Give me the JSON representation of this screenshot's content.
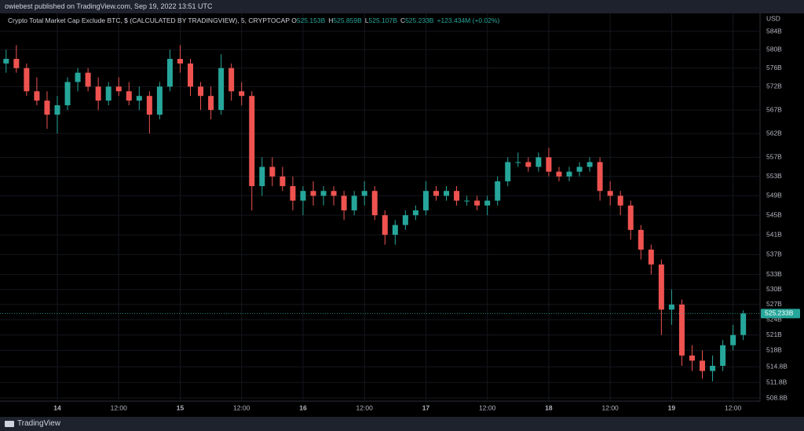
{
  "header": {
    "publisher": "owiebest published on TradingView.com, Sep 19, 2022 13:51 UTC"
  },
  "footer": {
    "brand": "TradingView"
  },
  "chart_data": {
    "type": "candlestick",
    "title": "Crypto Total Market Cap Exclude BTC, $ (CALCULATED BY TRADINGVIEW), 5, CRYPTOCAP",
    "ohlc_legend": [
      {
        "key": "O",
        "value": "525.153B"
      },
      {
        "key": "H",
        "value": "525.859B"
      },
      {
        "key": "L",
        "value": "525.107B"
      },
      {
        "key": "C",
        "value": "525.233B"
      }
    ],
    "change": "+123.434M (+0.02%)",
    "y_unit": "USD",
    "last_price": {
      "value": 525.233,
      "label": "525.233B"
    },
    "up_color": "#26a69a",
    "down_color": "#ef5350",
    "log_scale": true,
    "grid": true,
    "ylim": [
      508.05,
      587.98
    ],
    "yticks": [
      {
        "value": 584,
        "label": "584B"
      },
      {
        "value": 580,
        "label": "580B"
      },
      {
        "value": 576,
        "label": "576B"
      },
      {
        "value": 572,
        "label": "572B"
      },
      {
        "value": 567,
        "label": "567B"
      },
      {
        "value": 562,
        "label": "562B"
      },
      {
        "value": 557,
        "label": "557B"
      },
      {
        "value": 553,
        "label": "553B"
      },
      {
        "value": 549,
        "label": "549B"
      },
      {
        "value": 545,
        "label": "545B"
      },
      {
        "value": 541,
        "label": "541B"
      },
      {
        "value": 537,
        "label": "537B"
      },
      {
        "value": 533,
        "label": "533B"
      },
      {
        "value": 530,
        "label": "530B"
      },
      {
        "value": 527,
        "label": "527B"
      },
      {
        "value": 524,
        "label": "524B"
      },
      {
        "value": 521,
        "label": "521B"
      },
      {
        "value": 518,
        "label": "518B"
      },
      {
        "value": 514.8,
        "label": "514.8B"
      },
      {
        "value": 511.8,
        "label": "511.8B"
      },
      {
        "value": 508.8,
        "label": "508.8B"
      }
    ],
    "xticks": [
      {
        "value": "14 00:00",
        "label": "14"
      },
      {
        "value": "14 12:00",
        "label": "12:00"
      },
      {
        "value": "15 00:00",
        "label": "15"
      },
      {
        "value": "15 12:00",
        "label": "12:00"
      },
      {
        "value": "16 00:00",
        "label": "16"
      },
      {
        "value": "16 12:00",
        "label": "12:00"
      },
      {
        "value": "17 00:00",
        "label": "17"
      },
      {
        "value": "17 12:00",
        "label": "12:00"
      },
      {
        "value": "18 00:00",
        "label": "18"
      },
      {
        "value": "18 12:00",
        "label": "12:00"
      },
      {
        "value": "19 00:00",
        "label": "19"
      },
      {
        "value": "19 12:00",
        "label": "12:00"
      }
    ],
    "x": [
      "13 14:00",
      "13 16:00",
      "13 18:00",
      "13 20:00",
      "13 22:00",
      "14 00:00",
      "14 02:00",
      "14 04:00",
      "14 06:00",
      "14 08:00",
      "14 10:00",
      "14 12:00",
      "14 14:00",
      "14 16:00",
      "14 18:00",
      "14 20:00",
      "14 22:00",
      "15 00:00",
      "15 02:00",
      "15 04:00",
      "15 06:00",
      "15 08:00",
      "15 10:00",
      "15 12:00",
      "15 14:00",
      "15 16:00",
      "15 18:00",
      "15 20:00",
      "15 22:00",
      "16 00:00",
      "16 02:00",
      "16 04:00",
      "16 06:00",
      "16 08:00",
      "16 10:00",
      "16 12:00",
      "16 14:00",
      "16 16:00",
      "16 18:00",
      "16 20:00",
      "16 22:00",
      "17 00:00",
      "17 02:00",
      "17 04:00",
      "17 06:00",
      "17 08:00",
      "17 10:00",
      "17 12:00",
      "17 14:00",
      "17 16:00",
      "17 18:00",
      "17 20:00",
      "17 22:00",
      "18 00:00",
      "18 02:00",
      "18 04:00",
      "18 06:00",
      "18 08:00",
      "18 10:00",
      "18 12:00",
      "18 14:00",
      "18 16:00",
      "18 18:00",
      "18 20:00",
      "18 22:00",
      "19 00:00",
      "19 02:00",
      "19 04:00",
      "19 06:00",
      "19 08:00",
      "19 10:00",
      "19 12:00",
      "19 14:00"
    ],
    "open": [
      577,
      578,
      576,
      571,
      569,
      566,
      568,
      573,
      575,
      572,
      569,
      572,
      571,
      569,
      570,
      566,
      572,
      578,
      577,
      572,
      570,
      567,
      576,
      571,
      570,
      551,
      555,
      553,
      551,
      548,
      550,
      549,
      550,
      549,
      546,
      549,
      550,
      545,
      541,
      543,
      545,
      546,
      550,
      549,
      550,
      548,
      548,
      547,
      548,
      552,
      556,
      556,
      555,
      557,
      554,
      553,
      554,
      555,
      556,
      550,
      549,
      547,
      542,
      538,
      535,
      526,
      527,
      517,
      516,
      514,
      515,
      519,
      521
    ],
    "high": [
      580,
      581,
      577,
      574,
      571,
      570,
      574,
      576,
      576,
      574,
      573,
      574,
      573,
      572,
      571,
      573,
      580,
      581,
      578,
      573,
      572,
      579,
      577,
      573,
      571,
      557,
      557,
      555,
      553,
      551,
      552,
      551,
      551,
      550,
      550,
      552,
      551,
      546,
      544,
      546,
      547,
      552,
      551,
      551,
      551,
      549,
      549,
      549,
      553,
      557,
      558,
      557,
      558,
      559,
      555,
      555,
      556,
      557,
      557,
      552,
      550,
      548,
      543,
      539,
      536,
      530,
      528,
      519,
      518,
      517,
      520,
      523,
      525.859
    ],
    "low": [
      575,
      575,
      570,
      568,
      563,
      562,
      567,
      571,
      571,
      567,
      568,
      570,
      568,
      567,
      562,
      565,
      571,
      575,
      570,
      567,
      565,
      566,
      569,
      568,
      546,
      549,
      551,
      550,
      546,
      545,
      547,
      547,
      547,
      544,
      545,
      547,
      544,
      539,
      539,
      542,
      544,
      545,
      548,
      548,
      547,
      547,
      546,
      545,
      547,
      551,
      555,
      554,
      554,
      553,
      552,
      552,
      553,
      554,
      548,
      547,
      545,
      540,
      536,
      533,
      521,
      523,
      515,
      514,
      512.5,
      512,
      514,
      518,
      520
    ],
    "close": [
      578,
      576,
      571,
      569,
      566,
      568,
      573,
      575,
      572,
      569,
      572,
      571,
      569,
      570,
      566,
      572,
      578,
      577,
      572,
      570,
      567,
      576,
      571,
      570,
      551,
      555,
      553,
      551,
      548,
      550,
      549,
      550,
      549,
      546,
      549,
      550,
      545,
      541,
      543,
      545,
      546,
      550,
      549,
      550,
      548,
      548,
      547,
      548,
      552,
      556,
      556,
      555,
      557,
      554,
      553,
      554,
      555,
      556,
      550,
      549,
      547,
      542,
      538,
      535,
      526,
      527,
      517,
      516,
      514,
      515,
      519,
      521,
      525.233
    ]
  }
}
